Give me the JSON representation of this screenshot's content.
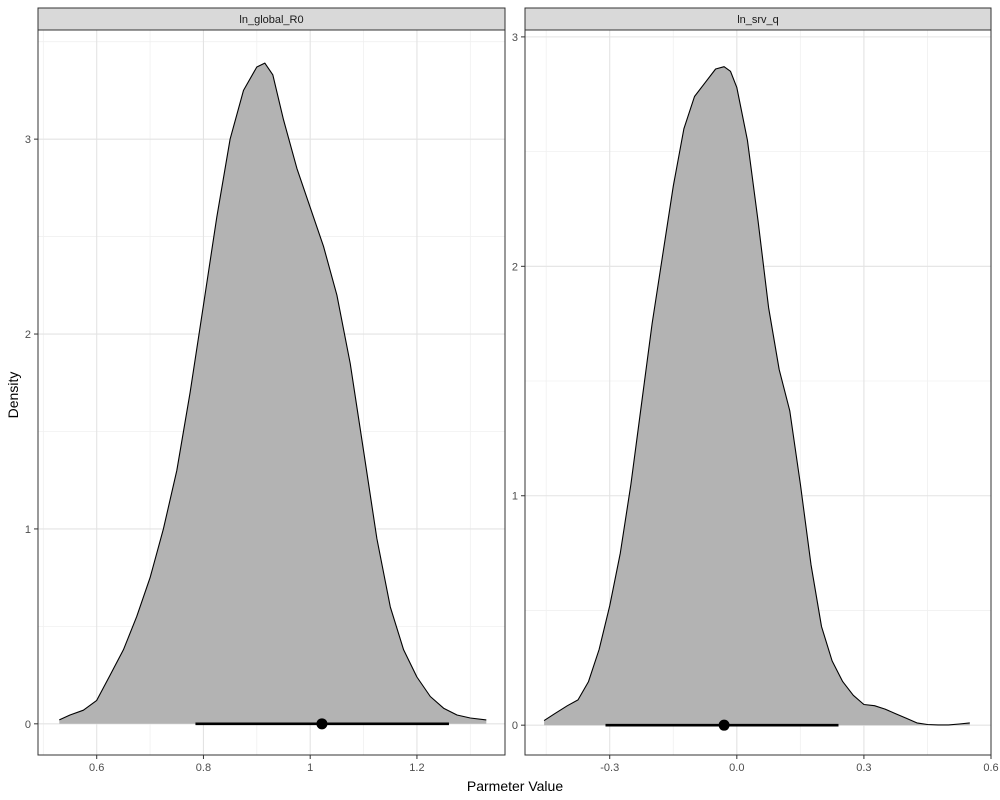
{
  "figure": {
    "xlabel": "Parmeter Value",
    "ylabel": "Density"
  },
  "chart_data": [
    {
      "type": "area",
      "panel": "ln_global_R0",
      "xlim": [
        0.49,
        1.365
      ],
      "ylim": [
        -0.16,
        3.56
      ],
      "x_ticks": [
        0.6,
        0.8,
        1.0,
        1.2
      ],
      "x_tick_labels": [
        "0.6",
        "0.8",
        "1",
        "1.2"
      ],
      "y_ticks": [
        0,
        1,
        2,
        3
      ],
      "y_tick_labels": [
        "0",
        "1",
        "2",
        "3"
      ],
      "grid": true,
      "fill_color": "#b3b3b3",
      "density": {
        "x": [
          0.53,
          0.55,
          0.575,
          0.6,
          0.625,
          0.65,
          0.675,
          0.7,
          0.725,
          0.75,
          0.775,
          0.8,
          0.825,
          0.85,
          0.875,
          0.9,
          0.915,
          0.93,
          0.95,
          0.975,
          1.0,
          1.025,
          1.05,
          1.075,
          1.1,
          1.125,
          1.15,
          1.175,
          1.2,
          1.225,
          1.25,
          1.275,
          1.3,
          1.33
        ],
        "y": [
          0.02,
          0.045,
          0.07,
          0.12,
          0.25,
          0.38,
          0.55,
          0.75,
          1.0,
          1.3,
          1.7,
          2.15,
          2.6,
          3.0,
          3.25,
          3.37,
          3.39,
          3.33,
          3.1,
          2.85,
          2.65,
          2.45,
          2.2,
          1.85,
          1.4,
          0.95,
          0.6,
          0.38,
          0.24,
          0.14,
          0.08,
          0.045,
          0.03,
          0.02
        ]
      },
      "interval": {
        "low": 0.785,
        "high": 1.26,
        "point": 1.022
      }
    },
    {
      "type": "area",
      "panel": "ln_srv_q",
      "xlim": [
        -0.5,
        0.6
      ],
      "ylim": [
        -0.13,
        3.03
      ],
      "x_ticks": [
        -0.3,
        0.0,
        0.3,
        0.6
      ],
      "x_tick_labels": [
        "-0.3",
        "0.0",
        "0.3",
        "0.6"
      ],
      "y_ticks": [
        0,
        1,
        2,
        3
      ],
      "y_tick_labels": [
        "0",
        "1",
        "2",
        "3"
      ],
      "grid": true,
      "fill_color": "#b3b3b3",
      "density": {
        "x": [
          -0.455,
          -0.43,
          -0.4,
          -0.375,
          -0.35,
          -0.325,
          -0.3,
          -0.275,
          -0.25,
          -0.225,
          -0.2,
          -0.175,
          -0.15,
          -0.125,
          -0.1,
          -0.075,
          -0.05,
          -0.03,
          -0.015,
          0.0,
          0.025,
          0.05,
          0.075,
          0.1,
          0.125,
          0.15,
          0.175,
          0.2,
          0.225,
          0.25,
          0.275,
          0.3,
          0.325,
          0.35,
          0.375,
          0.4,
          0.425,
          0.45,
          0.475,
          0.5,
          0.525,
          0.55
        ],
        "y": [
          0.02,
          0.05,
          0.085,
          0.11,
          0.19,
          0.33,
          0.52,
          0.75,
          1.05,
          1.4,
          1.75,
          2.05,
          2.35,
          2.6,
          2.74,
          2.8,
          2.86,
          2.87,
          2.85,
          2.78,
          2.55,
          2.2,
          1.82,
          1.55,
          1.37,
          1.05,
          0.7,
          0.43,
          0.28,
          0.19,
          0.13,
          0.09,
          0.085,
          0.07,
          0.05,
          0.03,
          0.01,
          0.003,
          0.001,
          0.001,
          0.005,
          0.01
        ]
      },
      "interval": {
        "low": -0.31,
        "high": 0.24,
        "point": -0.03
      }
    }
  ]
}
